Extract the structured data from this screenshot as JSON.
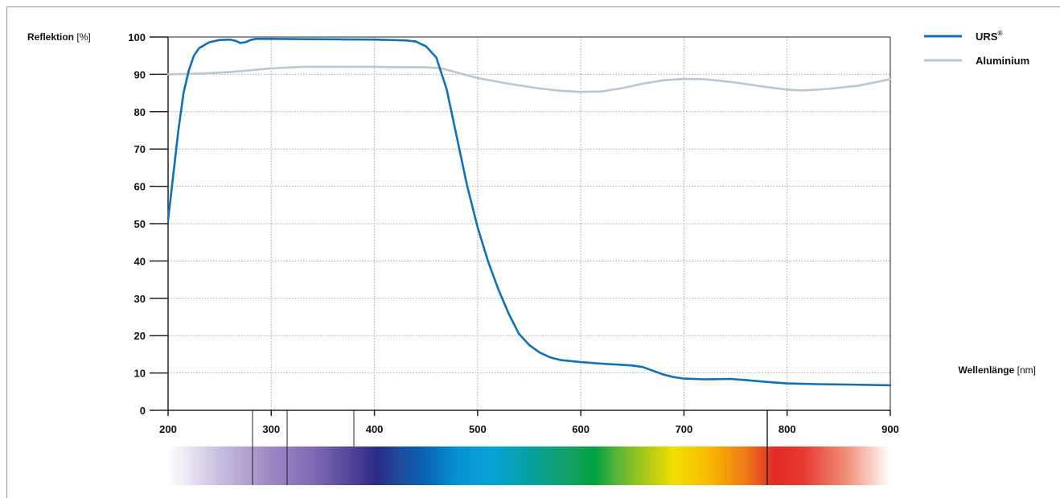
{
  "chart_data": {
    "type": "line",
    "ylabel": "Reflektion",
    "ylabel_unit": "[%]",
    "xlabel": "Wellenlänge",
    "xlabel_unit": "[nm]",
    "xlim": [
      200,
      900
    ],
    "ylim": [
      0,
      100
    ],
    "x_ticks": [
      200,
      300,
      400,
      500,
      600,
      700,
      800,
      900
    ],
    "y_ticks": [
      0,
      10,
      20,
      30,
      40,
      50,
      60,
      70,
      80,
      90,
      100
    ],
    "grid": true,
    "legend_position": "top-right",
    "series": [
      {
        "name": "URS",
        "name_sup": "®",
        "color": "#1070b8",
        "points": [
          [
            200,
            51
          ],
          [
            205,
            63
          ],
          [
            210,
            75
          ],
          [
            215,
            85
          ],
          [
            220,
            91
          ],
          [
            225,
            95
          ],
          [
            230,
            97
          ],
          [
            240,
            98.6
          ],
          [
            250,
            99.2
          ],
          [
            260,
            99.3
          ],
          [
            265,
            99
          ],
          [
            270,
            98.4
          ],
          [
            275,
            98.6
          ],
          [
            280,
            99.2
          ],
          [
            285,
            99.5
          ],
          [
            300,
            99.5
          ],
          [
            350,
            99.4
          ],
          [
            400,
            99.3
          ],
          [
            430,
            99.1
          ],
          [
            440,
            98.8
          ],
          [
            450,
            97.5
          ],
          [
            460,
            94.5
          ],
          [
            470,
            86
          ],
          [
            480,
            73
          ],
          [
            490,
            60
          ],
          [
            500,
            49
          ],
          [
            510,
            40
          ],
          [
            520,
            32.5
          ],
          [
            530,
            26
          ],
          [
            540,
            20.5
          ],
          [
            550,
            17.5
          ],
          [
            560,
            15.5
          ],
          [
            570,
            14.2
          ],
          [
            580,
            13.5
          ],
          [
            600,
            12.9
          ],
          [
            620,
            12.5
          ],
          [
            650,
            12
          ],
          [
            660,
            11.6
          ],
          [
            670,
            10.6
          ],
          [
            680,
            9.6
          ],
          [
            690,
            8.9
          ],
          [
            700,
            8.5
          ],
          [
            720,
            8.3
          ],
          [
            745,
            8.4
          ],
          [
            760,
            8.1
          ],
          [
            780,
            7.6
          ],
          [
            800,
            7.2
          ],
          [
            830,
            7
          ],
          [
            860,
            6.9
          ],
          [
            900,
            6.7
          ]
        ]
      },
      {
        "name": "Aluminium",
        "color": "#b8c8d2",
        "points": [
          [
            200,
            90
          ],
          [
            230,
            90.2
          ],
          [
            260,
            90.6
          ],
          [
            300,
            91.6
          ],
          [
            330,
            92
          ],
          [
            350,
            92
          ],
          [
            400,
            92
          ],
          [
            430,
            91.9
          ],
          [
            450,
            91.9
          ],
          [
            465,
            91.6
          ],
          [
            480,
            90.5
          ],
          [
            500,
            89
          ],
          [
            530,
            87.5
          ],
          [
            560,
            86.2
          ],
          [
            580,
            85.6
          ],
          [
            600,
            85.3
          ],
          [
            620,
            85.4
          ],
          [
            640,
            86.3
          ],
          [
            660,
            87.5
          ],
          [
            680,
            88.4
          ],
          [
            700,
            88.8
          ],
          [
            720,
            88.7
          ],
          [
            750,
            87.8
          ],
          [
            780,
            86.6
          ],
          [
            800,
            85.9
          ],
          [
            815,
            85.7
          ],
          [
            840,
            86.1
          ],
          [
            870,
            87
          ],
          [
            900,
            88.7
          ]
        ]
      }
    ]
  }
}
